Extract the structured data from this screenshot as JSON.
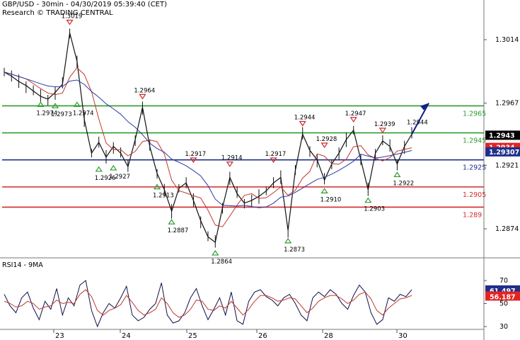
{
  "header": {
    "title": "GBP/USD - 30min - 04/30/2019 05:39:40 (CET)",
    "research": "Research © TRADING CENTRAL"
  },
  "chart_data": {
    "type": "candlestick",
    "x_labels": [
      "23",
      "24",
      "25",
      "26",
      "28",
      "30"
    ],
    "price_ticks": [
      "1.3014",
      "1.2967",
      "1.2921",
      "1.2874"
    ],
    "horizontal_lines": [
      {
        "price": 1.2965,
        "label": "1.2965",
        "color": "#2e9c2e"
      },
      {
        "price": 1.2945,
        "label": "1.2945",
        "color": "#2e9c2e"
      },
      {
        "price": 1.2925,
        "label": "1.2925",
        "color": "#1f2f8a"
      },
      {
        "price": 1.2905,
        "label": "1.2905",
        "color": "#d32a2a"
      },
      {
        "price": 1.289,
        "label": "1.289",
        "color": "#d32a2a"
      }
    ],
    "price_badges": [
      {
        "price": 1.2943,
        "label": "1.2943",
        "bg": "#000000",
        "fg": "#ffffff"
      },
      {
        "price": 1.2934,
        "label": "1.2934",
        "bg": "#e52222",
        "fg": "#ffffff"
      },
      {
        "price": 1.29307,
        "label": "1.29307",
        "bg": "#1f2f8a",
        "fg": "#ffffff"
      }
    ],
    "swing_highs": [
      {
        "label": "1.3019",
        "price": 1.3019
      },
      {
        "label": "1.2964",
        "price": 1.2964
      },
      {
        "label": "1.2917",
        "price": 1.2917
      },
      {
        "label": "1.2914",
        "price": 1.2914
      },
      {
        "label": "1.2917",
        "price": 1.2917
      },
      {
        "label": "1.2944",
        "price": 1.2944
      },
      {
        "label": "1.2928",
        "price": 1.2928
      },
      {
        "label": "1.2947",
        "price": 1.2947
      },
      {
        "label": "1.2939",
        "price": 1.2939
      }
    ],
    "swing_lows": [
      {
        "label": "1.2974",
        "price": 1.2974
      },
      {
        "label": "1.2973",
        "price": 1.2973
      },
      {
        "label": "1.2974",
        "price": 1.2974
      },
      {
        "label": "1.2926",
        "price": 1.2926
      },
      {
        "label": "1.2927",
        "price": 1.2927
      },
      {
        "label": "1.2913",
        "price": 1.2913
      },
      {
        "label": "1.2887",
        "price": 1.2887
      },
      {
        "label": "1.2864",
        "price": 1.2864
      },
      {
        "label": "1.2873",
        "price": 1.2873
      },
      {
        "label": "1.2910",
        "price": 1.291
      },
      {
        "label": "1.2903",
        "price": 1.2903
      },
      {
        "label": "1.2922",
        "price": 1.2922
      }
    ],
    "last_price_label": "1.2944",
    "projection": {
      "from_price": 1.2944,
      "to_price": 1.2967
    },
    "price_series": [
      1.299,
      1.2987,
      1.2983,
      1.298,
      1.2976,
      1.2972,
      1.297,
      1.2975,
      1.2981,
      1.3019,
      1.2998,
      1.2955,
      1.293,
      1.2938,
      1.2927,
      1.2935,
      1.293,
      1.292,
      1.294,
      1.2964,
      1.2935,
      1.2915,
      1.2903,
      1.2887,
      1.2904,
      1.2908,
      1.2895,
      1.288,
      1.2868,
      1.2864,
      1.289,
      1.2912,
      1.29,
      1.2893,
      1.2895,
      1.2898,
      1.2902,
      1.2908,
      1.2912,
      1.2873,
      1.2917,
      1.2944,
      1.2932,
      1.2925,
      1.291,
      1.2922,
      1.293,
      1.294,
      1.2947,
      1.2925,
      1.2903,
      1.293,
      1.2939,
      1.2935,
      1.2922,
      1.2935,
      1.2944
    ],
    "rsi": {
      "label": "RSI14 - 9MA",
      "ticks": [
        "70",
        "50",
        "30"
      ],
      "rsi_value": "61.497",
      "ma_value": "56.187",
      "rsi_series": [
        58,
        48,
        42,
        55,
        60,
        46,
        36,
        52,
        45,
        63,
        40,
        55,
        48,
        66,
        70,
        44,
        30,
        42,
        50,
        46,
        55,
        65,
        40,
        35,
        38,
        45,
        50,
        68,
        40,
        33,
        35,
        42,
        55,
        63,
        48,
        36,
        45,
        55,
        40,
        60,
        35,
        32,
        52,
        60,
        62,
        56,
        53,
        48,
        55,
        58,
        50,
        40,
        35,
        55,
        60,
        56,
        62,
        58,
        50,
        45,
        57,
        66,
        60,
        42,
        32,
        36,
        55,
        52,
        58,
        56,
        62
      ],
      "ma_series": [
        52,
        50,
        47,
        48,
        52,
        50,
        45,
        47,
        48,
        53,
        50,
        51,
        50,
        58,
        62,
        56,
        44,
        40,
        44,
        46,
        49,
        57,
        51,
        44,
        40,
        42,
        45,
        55,
        50,
        42,
        38,
        40,
        45,
        53,
        52,
        45,
        44,
        48,
        46,
        52,
        46,
        40,
        45,
        52,
        57,
        57,
        55,
        52,
        53,
        55,
        54,
        48,
        42,
        46,
        52,
        55,
        57,
        57,
        54,
        50,
        53,
        58,
        60,
        54,
        44,
        40,
        46,
        50,
        54,
        55,
        57
      ]
    }
  }
}
